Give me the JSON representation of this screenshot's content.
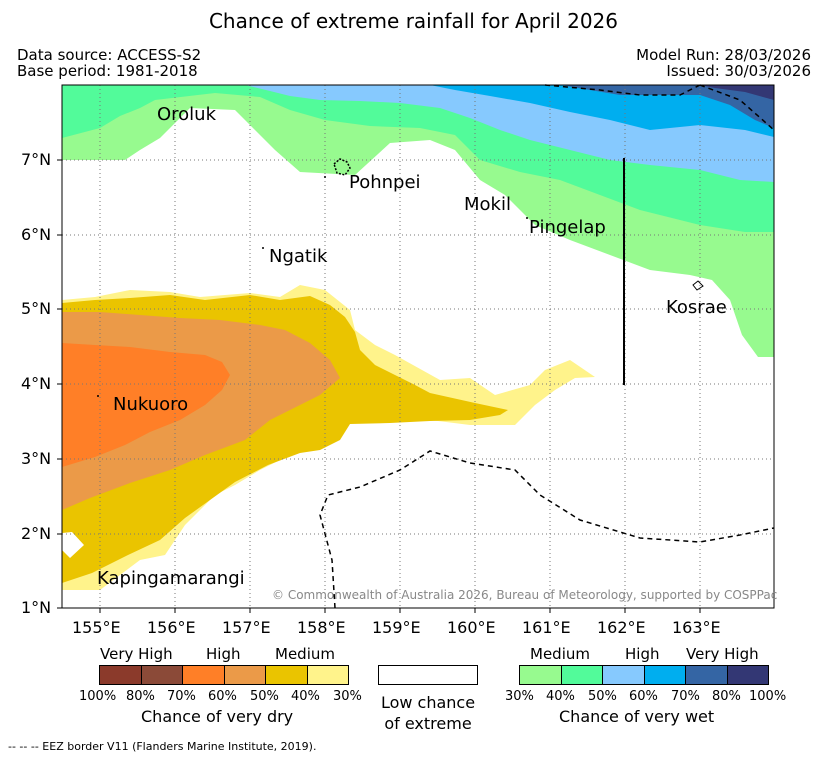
{
  "title": "Chance of extreme rainfall for April 2026",
  "meta": {
    "data_source": "Data source: ACCESS-S2",
    "base_period": "Base period: 1981-2018",
    "model_run": "Model Run: 28/03/2026",
    "issued": "Issued: 30/03/2026"
  },
  "map": {
    "lat_labels": [
      "7°N",
      "6°N",
      "5°N",
      "4°N",
      "3°N",
      "2°N",
      "1°N"
    ],
    "lon_labels": [
      "155°E",
      "156°E",
      "157°E",
      "158°E",
      "159°E",
      "160°E",
      "161°E",
      "162°E",
      "163°E"
    ],
    "places": {
      "oroluk": "Oroluk",
      "pohnpei": "Pohnpei",
      "mokil": "Mokil",
      "pingelap": "Pingelap",
      "ngatik": "Ngatik",
      "kosrae": "Kosrae",
      "nukuoro": "Nukuoro",
      "kapingamarangi": "Kapingamarangi"
    },
    "copyright": "© Commonwealth of Australia 2026, Bureau of Meteorology, supported by COSPPac"
  },
  "legend": {
    "dry": {
      "categories": [
        "Very High",
        "High",
        "Medium"
      ],
      "colors": [
        "#8b3a2b",
        "#8b4a38",
        "#ff7f27",
        "#eb9a48",
        "#eac400",
        "#fff38b"
      ],
      "ticks": [
        "100%",
        "80%",
        "70%",
        "60%",
        "50%",
        "40%",
        "30%"
      ],
      "caption": "Chance of very dry"
    },
    "neutral": {
      "line1": "Low chance",
      "line2": "of extreme"
    },
    "wet": {
      "categories": [
        "Medium",
        "High",
        "Very High"
      ],
      "colors": [
        "#97fa8f",
        "#52fb9a",
        "#86c9fe",
        "#00aeef",
        "#3465a4",
        "#333774"
      ],
      "ticks": [
        "30%",
        "40%",
        "50%",
        "60%",
        "70%",
        "80%",
        "100%"
      ],
      "caption": "Chance of very wet"
    }
  },
  "footer": "-- -- -- EEZ border V11 (Flanders Marine Institute, 2019)."
}
